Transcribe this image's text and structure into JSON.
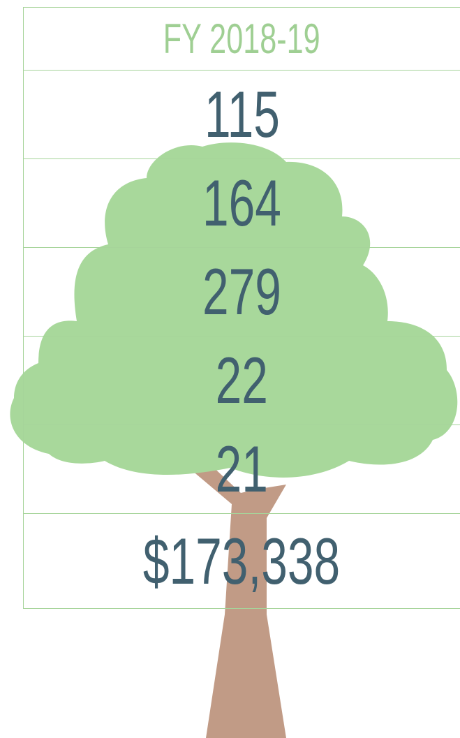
{
  "header": {
    "title": "FY 2018-19"
  },
  "table": {
    "rows": [
      "115",
      "164",
      "279",
      "22",
      "21",
      "$173,338"
    ]
  }
}
